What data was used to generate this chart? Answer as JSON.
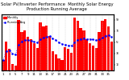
{
  "title": "Solar PV/Inverter Performance  Monthly Solar Energy Production Running Average",
  "bar_values": [
    18,
    52,
    38,
    12,
    8,
    90,
    68,
    72,
    60,
    55,
    48,
    40,
    85,
    78,
    80,
    62,
    35,
    28,
    22,
    18,
    42,
    38,
    32,
    95,
    88,
    75,
    72,
    55,
    48,
    45,
    40,
    68,
    88,
    92,
    78,
    52
  ],
  "running_avg": [
    18,
    35,
    36,
    30,
    28,
    46,
    52,
    54,
    54,
    53,
    51,
    50,
    55,
    58,
    60,
    61,
    57,
    54,
    50,
    47,
    46,
    45,
    44,
    50,
    54,
    56,
    57,
    56,
    56,
    55,
    54,
    55,
    58,
    62,
    63,
    60
  ],
  "bar_color": "#FF0000",
  "avg_color": "#0000FF",
  "background_color": "#FFFFFF",
  "grid_color": "#CCCCCC",
  "ylim": [
    0,
    100
  ],
  "yticks": [
    10,
    30,
    50,
    70,
    90
  ],
  "ytick_labels": [
    "1l",
    "3l",
    "5l",
    "7l",
    "9l"
  ],
  "title_fontsize": 3.8,
  "tick_fontsize": 2.8,
  "legend_fontsize": 2.5
}
